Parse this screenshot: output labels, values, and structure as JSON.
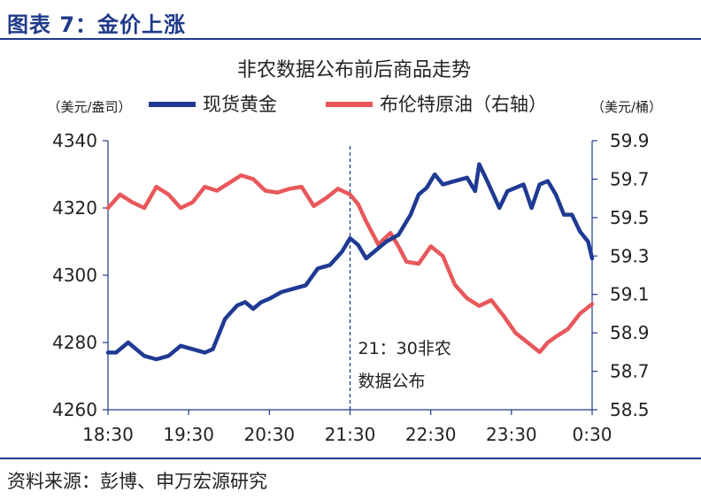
{
  "figure": {
    "title": "图表 7：金价上涨",
    "source": "资料来源：彭博、申万宏源研究"
  },
  "colors": {
    "brand": "#1f3a8a",
    "gold_series": "#1f3a93",
    "brent_series": "#e8585b",
    "axis": "#1f3a8a"
  },
  "chart_data": {
    "type": "line",
    "title": "非农数据公布前后商品走势",
    "left_unit": "（美元/盎司）",
    "right_unit": "（美元/桶）",
    "x_ticks": [
      "18:30",
      "19:30",
      "20:30",
      "21:30",
      "22:30",
      "23:30",
      "0:30"
    ],
    "xlim": [
      0,
      6
    ],
    "y_left": {
      "lim": [
        4260,
        4340
      ],
      "ticks": [
        "4340",
        "4320",
        "4300",
        "4280",
        "4260"
      ]
    },
    "y_right": {
      "lim": [
        58.5,
        59.9
      ],
      "ticks": [
        "59.9",
        "59.7",
        "59.5",
        "59.3",
        "59.1",
        "58.9",
        "58.7",
        "58.5"
      ]
    },
    "annotation": {
      "x": 3,
      "lines": [
        "21：30非农",
        "数据公布"
      ]
    },
    "series": [
      {
        "name": "现货黄金",
        "axis": "left",
        "x": [
          0,
          0.1,
          0.25,
          0.45,
          0.6,
          0.75,
          0.9,
          1.05,
          1.2,
          1.3,
          1.45,
          1.6,
          1.7,
          1.8,
          1.9,
          2.0,
          2.15,
          2.3,
          2.45,
          2.6,
          2.75,
          2.9,
          3.0,
          3.1,
          3.2,
          3.3,
          3.45,
          3.6,
          3.75,
          3.85,
          3.95,
          4.05,
          4.15,
          4.3,
          4.45,
          4.55,
          4.6,
          4.7,
          4.85,
          4.95,
          5.05,
          5.15,
          5.25,
          5.35,
          5.45,
          5.55,
          5.65,
          5.75,
          5.85,
          5.95,
          6.0
        ],
        "values": [
          4277,
          4277,
          4280,
          4276,
          4275,
          4276,
          4279,
          4278,
          4277,
          4278,
          4287,
          4291,
          4292,
          4290,
          4292,
          4293,
          4295,
          4296,
          4297,
          4302,
          4303,
          4307,
          4311,
          4309,
          4305,
          4307,
          4310,
          4312,
          4318,
          4324,
          4326,
          4330,
          4327,
          4328,
          4329,
          4325,
          4333,
          4328,
          4320,
          4325,
          4326,
          4327,
          4320,
          4327,
          4328,
          4324,
          4318,
          4318,
          4313,
          4310,
          4305
        ]
      },
      {
        "name": "布伦特原油（右轴）",
        "axis": "right",
        "x": [
          0,
          0.15,
          0.3,
          0.45,
          0.6,
          0.75,
          0.9,
          1.05,
          1.2,
          1.35,
          1.5,
          1.65,
          1.8,
          1.95,
          2.1,
          2.25,
          2.4,
          2.55,
          2.7,
          2.85,
          3.0,
          3.1,
          3.2,
          3.35,
          3.5,
          3.6,
          3.7,
          3.85,
          4.0,
          4.15,
          4.3,
          4.45,
          4.6,
          4.75,
          4.9,
          5.05,
          5.2,
          5.35,
          5.45,
          5.55,
          5.7,
          5.85,
          6.0
        ],
        "values": [
          59.55,
          59.62,
          59.58,
          59.55,
          59.66,
          59.62,
          59.55,
          59.58,
          59.66,
          59.64,
          59.68,
          59.72,
          59.7,
          59.64,
          59.63,
          59.65,
          59.66,
          59.56,
          59.6,
          59.65,
          59.62,
          59.57,
          59.48,
          59.36,
          59.42,
          59.35,
          59.27,
          59.26,
          59.35,
          59.3,
          59.15,
          59.08,
          59.04,
          59.07,
          58.99,
          58.9,
          58.85,
          58.8,
          58.85,
          58.88,
          58.92,
          59.0,
          59.05
        ]
      }
    ],
    "grid": false,
    "legend": "top"
  }
}
